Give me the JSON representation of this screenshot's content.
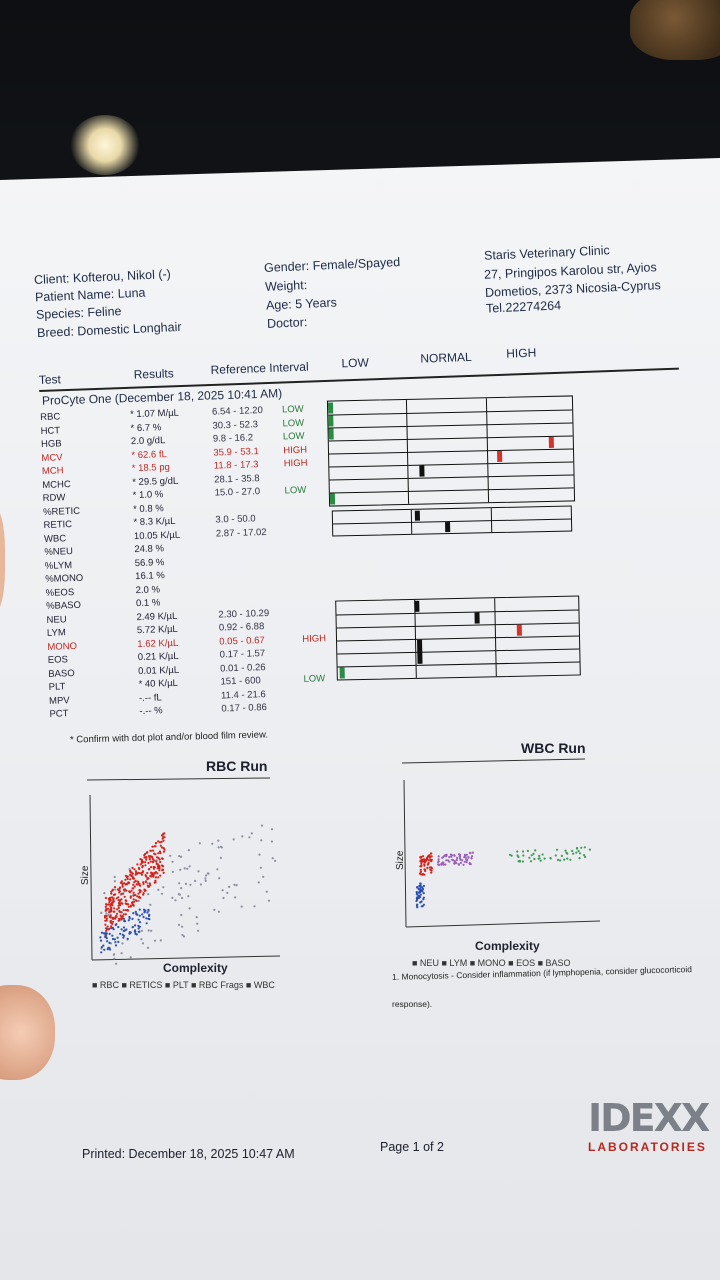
{
  "client": "Client: Kofterou, Nikol (-)",
  "patient": "Patient Name: Luna",
  "species": "Species: Feline",
  "breed": "Breed: Domestic Longhair",
  "gender": "Gender: Female/Spayed",
  "weight": "Weight:",
  "age": "Age: 5 Years",
  "doctor": "Doctor:",
  "clinic": {
    "name": "Staris Veterinary Clinic",
    "addr1": "27, Pringipos Karolou str, Ayios",
    "addr2": "Dometios, 2373 Nicosia-Cyprus",
    "tel": "Tel.22274264"
  },
  "columns": {
    "test": "Test",
    "results": "Results",
    "ref": "Reference Interval",
    "low": "LOW",
    "normal": "NORMAL",
    "high": "HIGH"
  },
  "run_title": "ProCyte One (December 18, 2025 10:41 AM)",
  "rows": [
    {
      "test": "RBC",
      "result": "* 1.07 M/µL",
      "ref": "6.54 - 12.20",
      "flag": "LOW"
    },
    {
      "test": "HCT",
      "result": "* 6.7 %",
      "ref": "30.3 - 52.3",
      "flag": "LOW"
    },
    {
      "test": "HGB",
      "result": "2.0 g/dL",
      "ref": "9.8 - 16.2",
      "flag": "LOW"
    },
    {
      "test": "MCV",
      "result": "* 62.6 fL",
      "ref": "35.9 - 53.1",
      "flag": "HIGH"
    },
    {
      "test": "MCH",
      "result": "* 18.5 pg",
      "ref": "11.8 - 17.3",
      "flag": "HIGH"
    },
    {
      "test": "MCHC",
      "result": "* 29.5 g/dL",
      "ref": "28.1 - 35.8",
      "flag": ""
    },
    {
      "test": "RDW",
      "result": "* 1.0 %",
      "ref": "15.0 - 27.0",
      "flag": "LOW"
    },
    {
      "test": "%RETIC",
      "result": "* 0.8 %",
      "ref": "",
      "flag": ""
    },
    {
      "test": "RETIC",
      "result": "* 8.3 K/µL",
      "ref": "3.0 - 50.0",
      "flag": ""
    },
    {
      "test": "WBC",
      "result": "10.05 K/µL",
      "ref": "2.87 - 17.02",
      "flag": ""
    },
    {
      "test": "%NEU",
      "result": "24.8 %",
      "ref": "",
      "flag": ""
    },
    {
      "test": "%LYM",
      "result": "56.9 %",
      "ref": "",
      "flag": ""
    },
    {
      "test": "%MONO",
      "result": "16.1 %",
      "ref": "",
      "flag": ""
    },
    {
      "test": "%EOS",
      "result": "2.0 %",
      "ref": "",
      "flag": ""
    },
    {
      "test": "%BASO",
      "result": "0.1 %",
      "ref": "",
      "flag": ""
    },
    {
      "test": "NEU",
      "result": "2.49 K/µL",
      "ref": "2.30 - 10.29",
      "flag": ""
    },
    {
      "test": "LYM",
      "result": "5.72 K/µL",
      "ref": "0.92 - 6.88",
      "flag": ""
    },
    {
      "test": "MONO",
      "result": "1.62 K/µL",
      "ref": "0.05 - 0.67",
      "flag": "HIGH"
    },
    {
      "test": "EOS",
      "result": "0.21 K/µL",
      "ref": "0.17 - 1.57",
      "flag": ""
    },
    {
      "test": "BASO",
      "result": "0.01 K/µL",
      "ref": "0.01 - 0.26",
      "flag": ""
    },
    {
      "test": "PLT",
      "result": "* 40 K/µL",
      "ref": "151 - 600",
      "flag": "LOW"
    },
    {
      "test": "MPV",
      "result": "-.-- fL",
      "ref": "11.4 - 21.6",
      "flag": ""
    },
    {
      "test": "PCT",
      "result": "-.-- %",
      "ref": "0.17 - 0.86",
      "flag": ""
    }
  ],
  "confirm_note": "* Confirm with dot plot and/or blood film review.",
  "rbc_chart": {
    "title": "RBC Run",
    "ylabel": "Size",
    "xlabel": "Complexity",
    "legend": "■ RBC ■ RETICS ■ PLT ■ RBC Frags ■ WBC"
  },
  "wbc_chart": {
    "title": "WBC Run",
    "ylabel": "Size",
    "xlabel": "Complexity",
    "legend": "■ NEU ■ LYM ■ MONO ■ EOS ■ BASO"
  },
  "comment1": "1. Monocytosis - Consider inflammation (if lymphopenia, consider glucocorticoid",
  "comment2": "response).",
  "printed": "Printed: December 18, 2025 10:47 AM",
  "page": "Page 1 of 2",
  "logo": {
    "main": "IDEXX",
    "sub": "LABORATORIES"
  },
  "colors": {
    "low": "#2c8a44",
    "high": "#d6332b",
    "paper": "#eef0f3"
  }
}
